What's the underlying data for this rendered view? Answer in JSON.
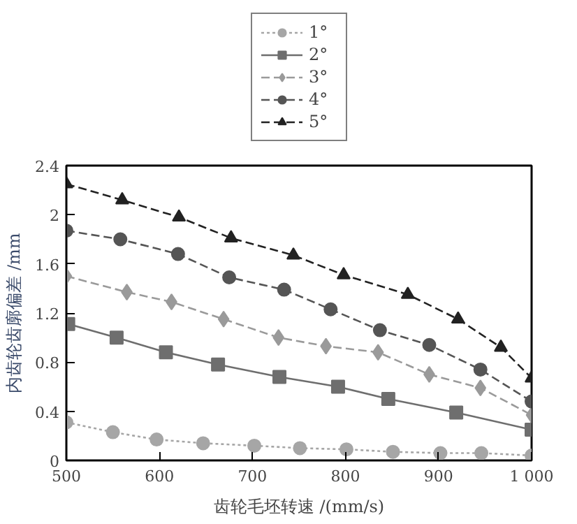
{
  "chart_data": {
    "type": "line",
    "xlabel": "齿轮毛坯转速 /(mm/s)",
    "ylabel": "内齿轮齿廓偏差 /mm",
    "xlim": [
      500,
      1000
    ],
    "ylim": [
      0,
      2.4
    ],
    "xticks": [
      500,
      600,
      700,
      800,
      900,
      {
        "value": 1000,
        "label": "1 000"
      }
    ],
    "yticks": [
      0,
      0.4,
      0.8,
      1.2,
      1.6,
      2.0,
      2.4
    ],
    "legend": "top",
    "grid": false,
    "series": [
      {
        "name": "1°",
        "color": "#a6a6a6",
        "marker": "circle",
        "line_style": "dotted",
        "x": [
          500,
          550,
          597,
          647,
          702,
          751,
          801,
          851,
          902,
          946,
          1000
        ],
        "values": [
          0.31,
          0.23,
          0.17,
          0.14,
          0.12,
          0.1,
          0.09,
          0.07,
          0.06,
          0.06,
          0.04
        ]
      },
      {
        "name": "2°",
        "color": "#6e6e6e",
        "marker": "square",
        "line_style": "solid",
        "x": [
          502,
          554,
          607,
          663,
          729,
          792,
          846,
          919,
          1000
        ],
        "values": [
          1.11,
          1.0,
          0.88,
          0.78,
          0.68,
          0.6,
          0.5,
          0.39,
          0.25
        ]
      },
      {
        "name": "3°",
        "color": "#9a9a9a",
        "marker": "diamond",
        "line_style": "dashed",
        "x": [
          500,
          565,
          613,
          669,
          728,
          779,
          835,
          890,
          945,
          1000
        ],
        "values": [
          1.5,
          1.37,
          1.29,
          1.15,
          1.0,
          0.93,
          0.88,
          0.7,
          0.59,
          0.37
        ]
      },
      {
        "name": "4°",
        "color": "#555555",
        "marker": "circle",
        "line_style": "dashed",
        "x": [
          500,
          558,
          620,
          675,
          734,
          784,
          837,
          890,
          945,
          1000
        ],
        "values": [
          1.87,
          1.8,
          1.68,
          1.49,
          1.39,
          1.23,
          1.06,
          0.94,
          0.74,
          0.48
        ]
      },
      {
        "name": "5°",
        "color": "#222222",
        "marker": "triangle",
        "line_style": "dashed",
        "x": [
          500,
          560,
          621,
          677,
          744,
          798,
          867,
          921,
          967,
          1000
        ],
        "values": [
          2.25,
          2.12,
          1.98,
          1.81,
          1.67,
          1.51,
          1.35,
          1.15,
          0.92,
          0.67
        ]
      }
    ]
  }
}
